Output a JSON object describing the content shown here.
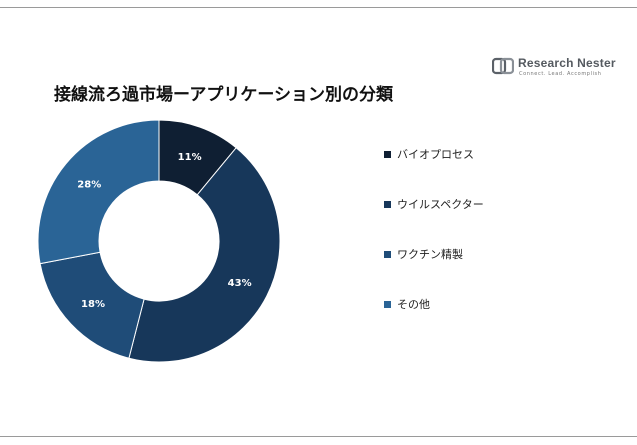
{
  "brand": {
    "name": "Research Nester",
    "tagline": "Connect. Lead. Accomplish"
  },
  "title": "接線流ろ過市場ーアプリケーション別の分類",
  "chart_data": {
    "type": "pie",
    "donut": true,
    "title": "接線流ろ過市場ーアプリケーション別の分類",
    "categories": [
      "バイオプロセス",
      "ウイルスペクター",
      "ワクチン精製",
      "その他"
    ],
    "values": [
      11,
      43,
      18,
      28
    ],
    "data_labels": [
      "11%",
      "43%",
      "18%",
      "28%"
    ],
    "colors": [
      "#0f1f33",
      "#17375a",
      "#1f4c78",
      "#2a6496"
    ],
    "legend_position": "right"
  }
}
